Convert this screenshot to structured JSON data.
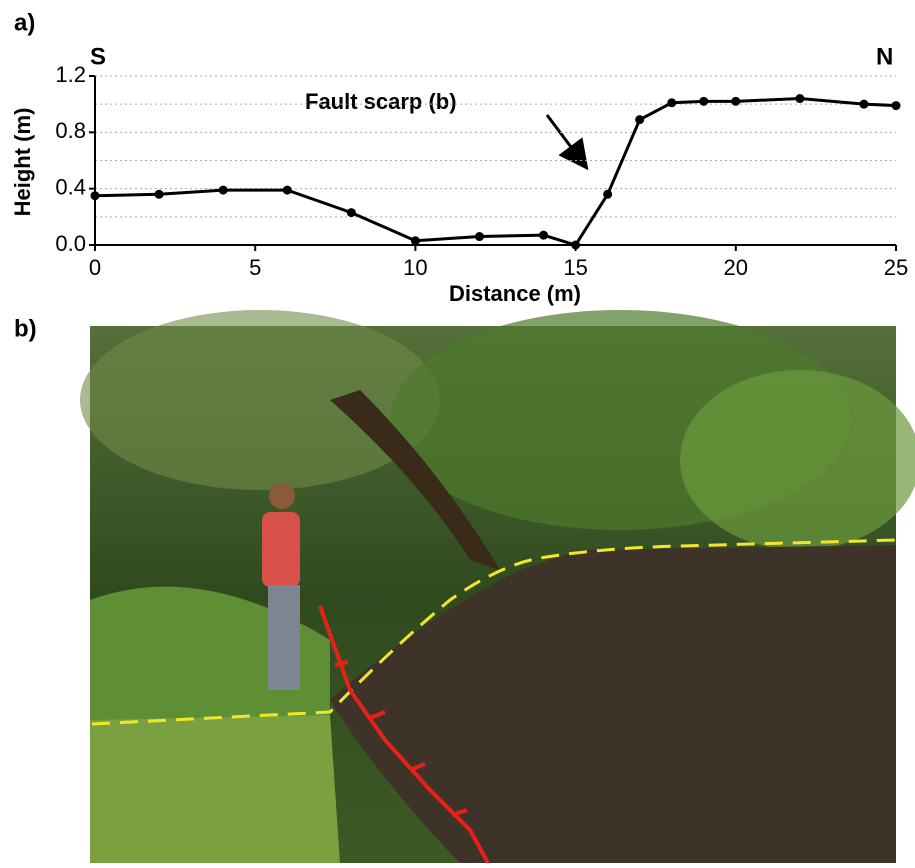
{
  "chart_data": {
    "type": "line",
    "panel_labels": [
      "a)",
      "b)"
    ],
    "start_label": "S",
    "end_label": "N",
    "xlabel": "Distance (m)",
    "ylabel": "Height (m)",
    "annotation": "Fault scarp (b)",
    "x": [
      0,
      2,
      4,
      6,
      8,
      10,
      12,
      14,
      15,
      16,
      17,
      18,
      19,
      20,
      22,
      24,
      25
    ],
    "series": [
      {
        "color": "#000000",
        "values": [
          0.35,
          0.36,
          0.39,
          0.39,
          0.23,
          0.03,
          0.06,
          0.07,
          0.0,
          0.36,
          0.89,
          1.01,
          1.02,
          1.02,
          1.04,
          1.0,
          0.99
        ]
      }
    ],
    "xlim": [
      0,
      25
    ],
    "xticks": [
      0,
      5,
      10,
      15,
      20,
      25
    ],
    "ylim": [
      0,
      1.2
    ],
    "yticks": [
      {
        "value": 0,
        "label": "0.0"
      },
      0.4,
      0.8,
      1.2
    ],
    "grid": true,
    "grid_lines": [
      0.2,
      0.4,
      0.6,
      0.8,
      1.0,
      1.2
    ]
  }
}
